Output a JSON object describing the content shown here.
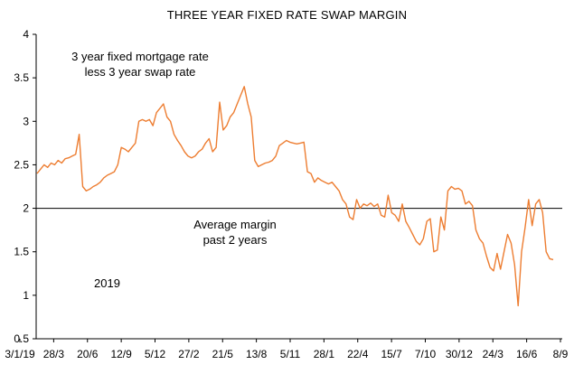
{
  "chart_data": {
    "type": "line",
    "title": "THREE YEAR FIXED RATE SWAP MARGIN",
    "annotations": {
      "series_note_line1": "3 year fixed mortgage rate",
      "series_note_line2": "less 3 year swap rate",
      "average_line1": "Average margin",
      "average_line2": "past 2 years",
      "year": "2019"
    },
    "ylim": [
      0.5,
      4
    ],
    "yticks": [
      "0.5",
      "1",
      "1.5",
      "2",
      "2.5",
      "3",
      "3.5",
      "4"
    ],
    "ytick_values": [
      0.5,
      1,
      1.5,
      2,
      2.5,
      3,
      3.5,
      4
    ],
    "xticks": [
      "3/1/19",
      "28/3",
      "20/6",
      "12/9",
      "5/12",
      "27/2",
      "21/5",
      "13/8",
      "5/11",
      "28/1",
      "22/4",
      "15/7",
      "7/10",
      "30/12",
      "24/3",
      "16/6",
      "8/9"
    ],
    "average_value": 2.0,
    "line_color": "#ED7D31",
    "average_color": "#000000",
    "series": [
      {
        "values": [
          2.4,
          2.45,
          2.5,
          2.47,
          2.52,
          2.5,
          2.55,
          2.52,
          2.57,
          2.58,
          2.6,
          2.62,
          2.85,
          2.25,
          2.2,
          2.22,
          2.25,
          2.27,
          2.3,
          2.35,
          2.38,
          2.4,
          2.42,
          2.5,
          2.7,
          2.68,
          2.65,
          2.7,
          2.75,
          3.0,
          3.02,
          3.0,
          3.02,
          2.95,
          3.1,
          3.15,
          3.2,
          3.05,
          3.0,
          2.85,
          2.78,
          2.72,
          2.65,
          2.6,
          2.58,
          2.6,
          2.65,
          2.68,
          2.75,
          2.8,
          2.65,
          2.7,
          3.22,
          2.9,
          2.95,
          3.05,
          3.1,
          3.2,
          3.3,
          3.4,
          3.2,
          3.05,
          2.55,
          2.48,
          2.5,
          2.52,
          2.53,
          2.55,
          2.6,
          2.72,
          2.75,
          2.78,
          2.76,
          2.75,
          2.74,
          2.75,
          2.76,
          2.42,
          2.4,
          2.3,
          2.35,
          2.32,
          2.3,
          2.28,
          2.3,
          2.25,
          2.2,
          2.1,
          2.05,
          1.9,
          1.87,
          2.1,
          2.0,
          2.05,
          2.03,
          2.06,
          2.02,
          2.05,
          1.92,
          1.9,
          2.15,
          1.95,
          1.92,
          1.85,
          2.05,
          1.85,
          1.78,
          1.7,
          1.62,
          1.58,
          1.65,
          1.85,
          1.88,
          1.5,
          1.52,
          1.9,
          1.75,
          2.2,
          2.25,
          2.22,
          2.23,
          2.2,
          2.05,
          2.08,
          2.03,
          1.75,
          1.65,
          1.6,
          1.45,
          1.32,
          1.28,
          1.48,
          1.3,
          1.5,
          1.7,
          1.6,
          1.35,
          0.88,
          1.5,
          1.78,
          2.1,
          1.8,
          2.05,
          2.1,
          1.95,
          1.5,
          1.42,
          1.41
        ]
      }
    ]
  }
}
